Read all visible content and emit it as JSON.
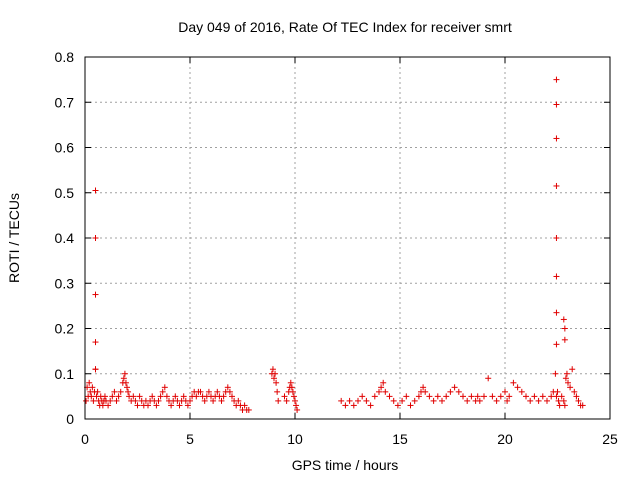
{
  "chart_data": {
    "type": "scatter",
    "title": "Day 049 of 2016, Rate Of TEC Index for receiver smrt",
    "xlabel": "GPS time / hours",
    "ylabel": "ROTI / TECUs",
    "xlim": [
      0,
      25
    ],
    "ylim": [
      0,
      0.8
    ],
    "x_ticks": [
      "0",
      "5",
      "10",
      "15",
      "20",
      "25"
    ],
    "y_ticks": [
      "0",
      "0.1",
      "0.2",
      "0.3",
      "0.4",
      "0.5",
      "0.6",
      "0.7",
      "0.8"
    ],
    "grid": true,
    "marker": "plus",
    "color": "#e00000",
    "series": [
      {
        "x": [
          0.05,
          0.1,
          0.15,
          0.2,
          0.25,
          0.3,
          0.35,
          0.4,
          0.45,
          0.5,
          0.55,
          0.6,
          0.65,
          0.7,
          0.75,
          0.8,
          0.85,
          0.9,
          0.95,
          1.0,
          1.1,
          1.2,
          1.3,
          1.4,
          1.5,
          1.6,
          1.7,
          1.8,
          1.85,
          1.9,
          1.95,
          2.0,
          2.05,
          2.1,
          2.2,
          2.3,
          2.4,
          2.5,
          2.6,
          2.7,
          2.8,
          2.9,
          3.0,
          3.1,
          3.2,
          3.3,
          3.4,
          3.5,
          3.6,
          3.7,
          3.8,
          3.9,
          4.0,
          4.1,
          4.2,
          4.3,
          4.4,
          4.5,
          4.6,
          4.7,
          4.8,
          4.9,
          5.0,
          5.1,
          5.2,
          5.3,
          5.4,
          5.5,
          5.6,
          5.7,
          5.8,
          5.9,
          6.0,
          6.1,
          6.2,
          6.3,
          6.4,
          6.5,
          6.6,
          6.7,
          6.8,
          6.9,
          7.0,
          7.1,
          7.2,
          7.3,
          7.4,
          7.5,
          7.6,
          7.7,
          7.8,
          8.9,
          8.95,
          9.0,
          9.05,
          9.1,
          9.15,
          9.2,
          9.5,
          9.6,
          9.7,
          9.75,
          9.8,
          9.85,
          9.9,
          9.95,
          10.0,
          10.05,
          10.1,
          12.2,
          12.4,
          12.6,
          12.8,
          13.0,
          13.2,
          13.4,
          13.6,
          13.8,
          14.0,
          14.1,
          14.2,
          14.3,
          14.5,
          14.7,
          14.9,
          15.1,
          15.3,
          15.5,
          15.7,
          15.9,
          16.0,
          16.1,
          16.2,
          16.4,
          16.6,
          16.8,
          17.0,
          17.2,
          17.4,
          17.6,
          17.8,
          18.0,
          18.2,
          18.4,
          18.6,
          18.7,
          18.8,
          19.0,
          19.2,
          19.4,
          19.6,
          19.8,
          20.0,
          20.1,
          20.2,
          20.4,
          20.6,
          20.8,
          21.0,
          21.2,
          21.4,
          21.6,
          21.8,
          22.0,
          22.2,
          22.3,
          22.4,
          22.45,
          22.5,
          22.55,
          22.6,
          22.7,
          22.8,
          22.85,
          22.9,
          22.95,
          23.0,
          23.1,
          23.2,
          23.3,
          23.4,
          23.5,
          23.6,
          23.7,
          0.5,
          0.5,
          0.5,
          0.5,
          0.5,
          22.45,
          22.45,
          22.45,
          22.45,
          22.45,
          22.45,
          22.45,
          22.45,
          22.8,
          22.85,
          22.85
        ],
        "y": [
          0.04,
          0.07,
          0.05,
          0.08,
          0.06,
          0.05,
          0.07,
          0.04,
          0.06,
          0.11,
          0.05,
          0.06,
          0.04,
          0.03,
          0.05,
          0.04,
          0.03,
          0.04,
          0.05,
          0.04,
          0.03,
          0.04,
          0.05,
          0.06,
          0.04,
          0.05,
          0.06,
          0.08,
          0.09,
          0.1,
          0.08,
          0.07,
          0.06,
          0.05,
          0.04,
          0.05,
          0.04,
          0.03,
          0.05,
          0.04,
          0.03,
          0.04,
          0.03,
          0.04,
          0.05,
          0.04,
          0.03,
          0.04,
          0.05,
          0.06,
          0.07,
          0.05,
          0.04,
          0.03,
          0.04,
          0.05,
          0.04,
          0.03,
          0.04,
          0.05,
          0.04,
          0.03,
          0.04,
          0.05,
          0.06,
          0.05,
          0.06,
          0.06,
          0.05,
          0.04,
          0.05,
          0.06,
          0.05,
          0.04,
          0.05,
          0.06,
          0.05,
          0.04,
          0.05,
          0.06,
          0.07,
          0.06,
          0.05,
          0.04,
          0.03,
          0.04,
          0.03,
          0.02,
          0.03,
          0.02,
          0.02,
          0.1,
          0.11,
          0.09,
          0.1,
          0.08,
          0.06,
          0.04,
          0.05,
          0.04,
          0.06,
          0.07,
          0.08,
          0.07,
          0.06,
          0.05,
          0.04,
          0.03,
          0.02,
          0.04,
          0.03,
          0.04,
          0.03,
          0.04,
          0.05,
          0.04,
          0.03,
          0.05,
          0.06,
          0.07,
          0.08,
          0.06,
          0.05,
          0.04,
          0.03,
          0.04,
          0.05,
          0.03,
          0.04,
          0.05,
          0.06,
          0.07,
          0.06,
          0.05,
          0.04,
          0.05,
          0.04,
          0.05,
          0.06,
          0.07,
          0.06,
          0.05,
          0.04,
          0.05,
          0.04,
          0.05,
          0.04,
          0.05,
          0.09,
          0.05,
          0.04,
          0.05,
          0.06,
          0.04,
          0.05,
          0.08,
          0.07,
          0.06,
          0.05,
          0.04,
          0.05,
          0.04,
          0.05,
          0.04,
          0.05,
          0.06,
          0.1,
          0.05,
          0.06,
          0.04,
          0.03,
          0.05,
          0.04,
          0.03,
          0.09,
          0.1,
          0.08,
          0.07,
          0.11,
          0.06,
          0.05,
          0.04,
          0.03,
          0.03,
          0.505,
          0.4,
          0.275,
          0.17,
          0.11,
          0.75,
          0.695,
          0.62,
          0.515,
          0.4,
          0.315,
          0.235,
          0.165,
          0.22,
          0.2,
          0.175
        ]
      }
    ]
  }
}
